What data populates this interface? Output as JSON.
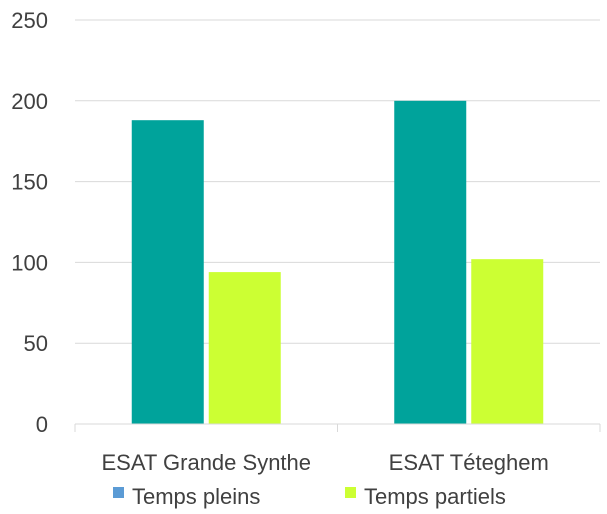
{
  "chart_data": {
    "type": "bar",
    "categories": [
      "ESAT Grande Synthe",
      "ESAT Téteghem"
    ],
    "series": [
      {
        "name": "Temps pleins",
        "values": [
          188,
          200
        ],
        "color": "#00a39b",
        "legend_color": "#5b9bd5"
      },
      {
        "name": "Temps partiels",
        "values": [
          94,
          102
        ],
        "color": "#ccff33",
        "legend_color": "#ccff33"
      }
    ],
    "ylim": [
      0,
      250
    ],
    "yticks": [
      0,
      50,
      100,
      150,
      200,
      250
    ],
    "grid": true,
    "legend_position": "bottom",
    "title": "",
    "xlabel": "",
    "ylabel": ""
  }
}
